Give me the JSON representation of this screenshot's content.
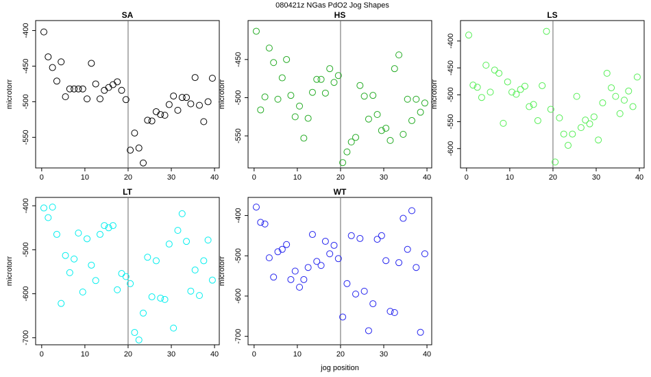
{
  "title": "080421z   NGas PdO2 Jog Shapes",
  "xlabel": "jog position",
  "chart_data": [
    {
      "type": "scatter",
      "title": "SA",
      "ylabel": "microtorr",
      "color": "#000000",
      "vline": 20,
      "xlim": [
        -1.4,
        41.1
      ],
      "xticks": [
        0,
        10,
        20,
        30,
        40
      ],
      "ylim": [
        -593,
        -386
      ],
      "yticks": [
        -400,
        -450,
        -500,
        -550
      ],
      "x": [
        0.5,
        1.5,
        2.5,
        3.5,
        4.5,
        5.5,
        6.5,
        7.5,
        8.5,
        9.5,
        10.5,
        11.5,
        12.5,
        13.5,
        14.5,
        15.5,
        16.5,
        17.5,
        18.5,
        19.5,
        20.5,
        21.5,
        22.5,
        23.5,
        24.5,
        25.5,
        26.5,
        27.5,
        28.5,
        29.5,
        30.5,
        31.5,
        32.5,
        33.5,
        34.5,
        35.5,
        36.5,
        37.5,
        38.5,
        39.5
      ],
      "values": [
        -402,
        -437,
        -452,
        -471,
        -444,
        -493,
        -482,
        -482,
        -482,
        -482,
        -496,
        -446,
        -475,
        -496,
        -484,
        -480,
        -476,
        -472,
        -484,
        -497,
        -568,
        -544,
        -565,
        -586,
        -526,
        -527,
        -514,
        -518,
        -519,
        -504,
        -492,
        -512,
        -494,
        -494,
        -503,
        -466,
        -505,
        -528,
        -500,
        -467
      ]
    },
    {
      "type": "scatter",
      "title": "HS",
      "ylabel": "microtorr",
      "color": "#22aa22",
      "vline": 20,
      "xlim": [
        -1.4,
        41.1
      ],
      "xticks": [
        0,
        10,
        20,
        30,
        40
      ],
      "ylim": [
        -592,
        -399
      ],
      "yticks": [
        -450,
        -500,
        -550
      ],
      "x": [
        0.5,
        1.5,
        2.5,
        3.5,
        4.5,
        5.5,
        6.5,
        7.5,
        8.5,
        9.5,
        10.5,
        11.5,
        12.5,
        13.5,
        14.5,
        15.5,
        16.5,
        17.5,
        18.5,
        19.5,
        20.5,
        21.5,
        22.5,
        23.5,
        24.5,
        25.5,
        26.5,
        27.5,
        28.5,
        29.5,
        30.5,
        31.5,
        32.5,
        33.5,
        34.5,
        35.5,
        36.5,
        37.5,
        38.5,
        39.5
      ],
      "values": [
        -413,
        -516,
        -499,
        -435,
        -454,
        -502,
        -474,
        -450,
        -497,
        -525,
        -511,
        -553,
        -527,
        -493,
        -476,
        -476,
        -494,
        -462,
        -480,
        -471,
        -585,
        -571,
        -558,
        -552,
        -484,
        -498,
        -528,
        -497,
        -522,
        -543,
        -540,
        -556,
        -462,
        -444,
        -548,
        -502,
        -530,
        -502,
        -519,
        -507
      ]
    },
    {
      "type": "scatter",
      "title": "LS",
      "ylabel": "microtorr",
      "color": "#55ee55",
      "vline": 20,
      "xlim": [
        -1.4,
        41.1
      ],
      "xticks": [
        0,
        10,
        20,
        30,
        40
      ],
      "ylim": [
        -636,
        -362
      ],
      "yticks": [
        -400,
        -450,
        -500,
        -550,
        -600
      ],
      "x": [
        0.5,
        1.5,
        2.5,
        3.5,
        4.5,
        5.5,
        6.5,
        7.5,
        8.5,
        9.5,
        10.5,
        11.5,
        12.5,
        13.5,
        14.5,
        15.5,
        16.5,
        17.5,
        18.5,
        19.5,
        20.5,
        21.5,
        22.5,
        23.5,
        24.5,
        25.5,
        26.5,
        27.5,
        28.5,
        29.5,
        30.5,
        31.5,
        32.5,
        33.5,
        34.5,
        35.5,
        36.5,
        37.5,
        38.5,
        39.5
      ],
      "values": [
        -389,
        -482,
        -486,
        -505,
        -445,
        -495,
        -454,
        -460,
        -553,
        -476,
        -495,
        -499,
        -490,
        -484,
        -522,
        -518,
        -548,
        -483,
        -382,
        -527,
        -625,
        -543,
        -573,
        -594,
        -573,
        -503,
        -561,
        -547,
        -554,
        -541,
        -584,
        -515,
        -460,
        -487,
        -503,
        -535,
        -510,
        -493,
        -522,
        -467
      ]
    },
    {
      "type": "scatter",
      "title": "LT",
      "ylabel": "microtorr",
      "color": "#00eeee",
      "vline": 20,
      "xlim": [
        -1.4,
        41.1
      ],
      "xticks": [
        0,
        10,
        20,
        30,
        40
      ],
      "ylim": [
        -716,
        -381
      ],
      "yticks": [
        -400,
        -500,
        -600,
        -700
      ],
      "x": [
        0.5,
        1.5,
        2.5,
        3.5,
        4.5,
        5.5,
        6.5,
        7.5,
        8.5,
        9.5,
        10.5,
        11.5,
        12.5,
        13.5,
        14.5,
        15.5,
        16.5,
        17.5,
        18.5,
        19.5,
        20.5,
        21.5,
        22.5,
        23.5,
        24.5,
        25.5,
        26.5,
        27.5,
        28.5,
        29.5,
        30.5,
        31.5,
        32.5,
        33.5,
        34.5,
        35.5,
        36.5,
        37.5,
        38.5,
        39.5
      ],
      "values": [
        -405,
        -427,
        -403,
        -465,
        -622,
        -513,
        -552,
        -521,
        -462,
        -596,
        -475,
        -535,
        -570,
        -465,
        -445,
        -450,
        -445,
        -591,
        -554,
        -561,
        -577,
        -688,
        -705,
        -644,
        -517,
        -607,
        -525,
        -610,
        -613,
        -487,
        -678,
        -456,
        -418,
        -481,
        -594,
        -546,
        -604,
        -525,
        -478,
        -569
      ]
    },
    {
      "type": "scatter",
      "title": "WT",
      "ylabel": "microtorr",
      "color": "#2222ee",
      "vline": 20,
      "xlim": [
        -1.4,
        41.1
      ],
      "xticks": [
        0,
        10,
        20,
        30,
        40
      ],
      "ylim": [
        -721,
        -355
      ],
      "yticks": [
        -400,
        -500,
        -600,
        -700
      ],
      "x": [
        0.5,
        1.5,
        2.5,
        3.5,
        4.5,
        5.5,
        6.5,
        7.5,
        8.5,
        9.5,
        10.5,
        11.5,
        12.5,
        13.5,
        14.5,
        15.5,
        16.5,
        17.5,
        18.5,
        19.5,
        20.5,
        21.5,
        22.5,
        23.5,
        24.5,
        25.5,
        26.5,
        27.5,
        28.5,
        29.5,
        30.5,
        31.5,
        32.5,
        33.5,
        34.5,
        35.5,
        36.5,
        37.5,
        38.5,
        39.5
      ],
      "values": [
        -379,
        -417,
        -421,
        -505,
        -553,
        -490,
        -484,
        -472,
        -559,
        -538,
        -578,
        -559,
        -529,
        -447,
        -514,
        -524,
        -464,
        -495,
        -474,
        -507,
        -652,
        -569,
        -450,
        -595,
        -457,
        -588,
        -686,
        -619,
        -459,
        -450,
        -512,
        -638,
        -641,
        -517,
        -407,
        -484,
        -388,
        -529,
        -690,
        -495
      ]
    }
  ]
}
